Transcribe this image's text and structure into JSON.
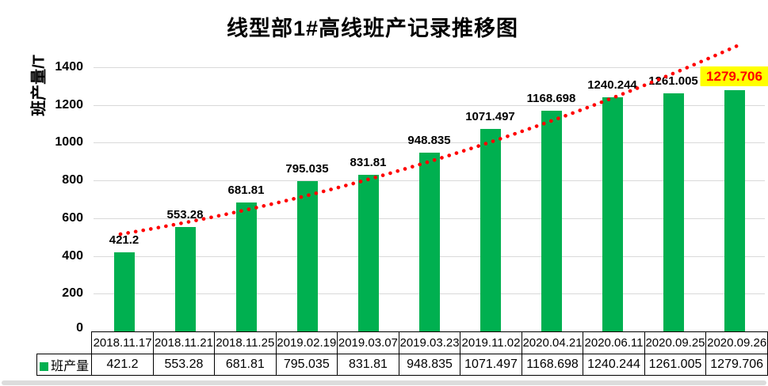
{
  "title": "线型部1#高线班产记录推移图",
  "y_axis": {
    "label": "班产量/T",
    "ticks": [
      0,
      200,
      400,
      600,
      800,
      1000,
      1200,
      1400
    ]
  },
  "legend": {
    "label": "班产量",
    "color": "#00B050"
  },
  "highlight": {
    "background": "#FFFF00",
    "text_color": "#FF0000"
  },
  "trend_line": {
    "color": "#FF0000",
    "style": "dotted"
  },
  "chart_data": {
    "type": "bar",
    "title": "线型部1#高线班产记录推移图",
    "xlabel": "",
    "ylabel": "班产量/T",
    "ylim": [
      0,
      1400
    ],
    "grid": true,
    "legend_position": "bottom-left",
    "series_name": "班产量",
    "bar_color": "#00B050",
    "categories": [
      "2018.11.17",
      "2018.11.21",
      "2018.11.25",
      "2019.02.19",
      "2019.03.07",
      "2019.03.23",
      "2019.11.02",
      "2020.04.21",
      "2020.06.11",
      "2020.09.25",
      "2020.09.26"
    ],
    "values": [
      421.2,
      553.28,
      681.81,
      795.035,
      831.81,
      948.835,
      1071.497,
      1168.698,
      1240.244,
      1261.005,
      1279.706
    ],
    "labels": [
      "421.2",
      "553.28",
      "681.81",
      "795.035",
      "831.81",
      "948.835",
      "1071.497",
      "1168.698",
      "1240.244",
      "1261.005",
      "1279.706"
    ],
    "highlighted_index": 10,
    "trendline": true
  }
}
